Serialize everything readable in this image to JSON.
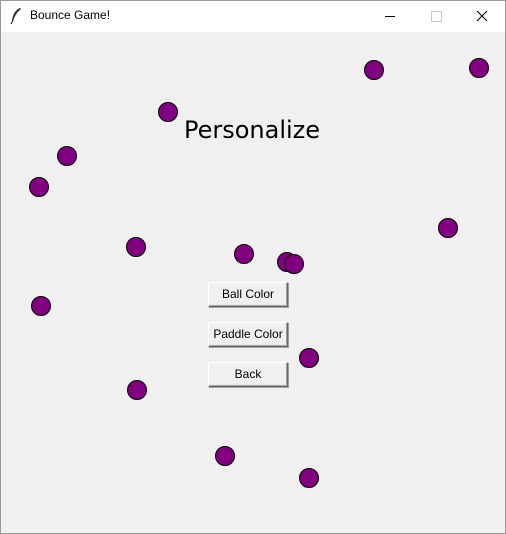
{
  "window": {
    "title": "Bounce Game!",
    "icon": "feather-icon",
    "controls": [
      "minimize-icon",
      "maximize-icon",
      "close-icon"
    ]
  },
  "screen": {
    "heading": "Personalize",
    "buttons": {
      "ball_color": "Ball Color",
      "paddle_color": "Paddle Color",
      "back": "Back"
    }
  },
  "colors": {
    "ball_fill": "#800080",
    "ball_outline": "#000000",
    "background": "#f0f0f0"
  }
}
